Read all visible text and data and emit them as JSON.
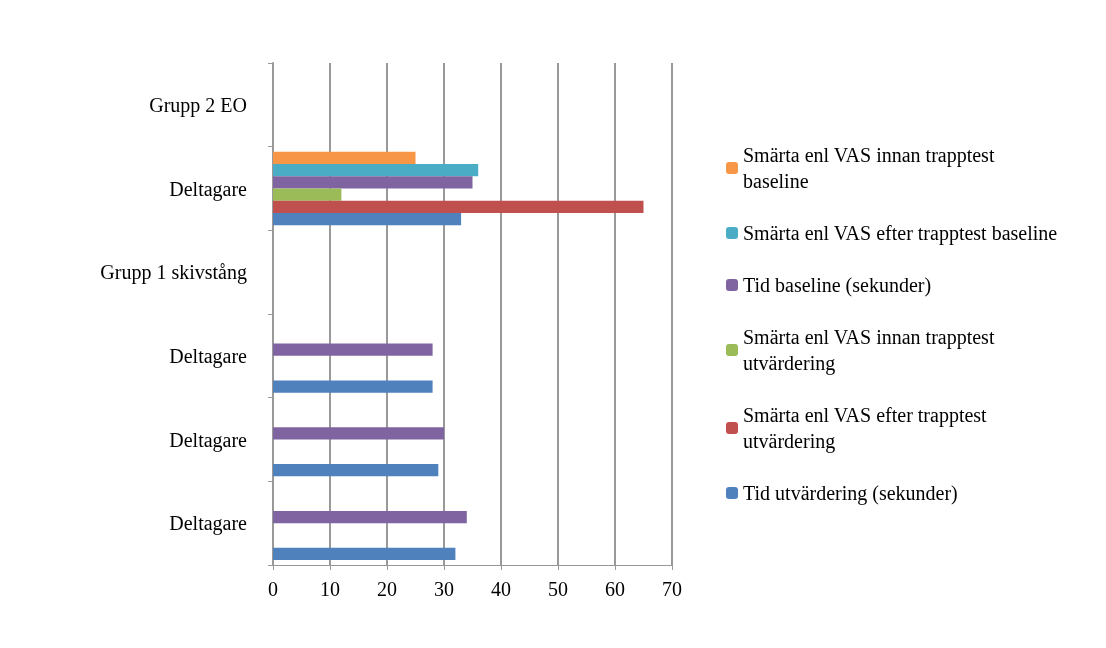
{
  "chart_data": {
    "type": "bar",
    "orientation": "horizontal",
    "categories": [
      "Grupp 2 EO",
      "Deltagare",
      "Grupp 1 skivstång",
      "Deltagare",
      "Deltagare",
      "Deltagare"
    ],
    "series": [
      {
        "name": "Smärta enl VAS innan trapptest baseline",
        "color": "#f79646",
        "values": [
          null,
          25,
          null,
          0,
          0,
          0
        ]
      },
      {
        "name": "Smärta enl VAS efter trapptest baseline",
        "color": "#4bacc6",
        "values": [
          null,
          36,
          null,
          0,
          0,
          0
        ]
      },
      {
        "name": "Tid baseline (sekunder)",
        "color": "#8064a2",
        "values": [
          null,
          35,
          null,
          28,
          30,
          34
        ]
      },
      {
        "name": "Smärta enl VAS innan trapptest utvärdering",
        "color": "#9bbb59",
        "values": [
          null,
          12,
          null,
          0,
          0,
          0
        ]
      },
      {
        "name": "Smärta enl VAS efter trapptest utvärdering",
        "color": "#c0504d",
        "values": [
          null,
          65,
          null,
          0,
          0,
          0
        ]
      },
      {
        "name": "Tid utvärdering (sekunder)",
        "color": "#4f81bd",
        "values": [
          null,
          33,
          null,
          28,
          29,
          32
        ]
      }
    ],
    "xlim": [
      0,
      70
    ],
    "xticks": [
      0,
      10,
      20,
      30,
      40,
      50,
      60,
      70
    ],
    "grid": "x",
    "legend": "right"
  }
}
